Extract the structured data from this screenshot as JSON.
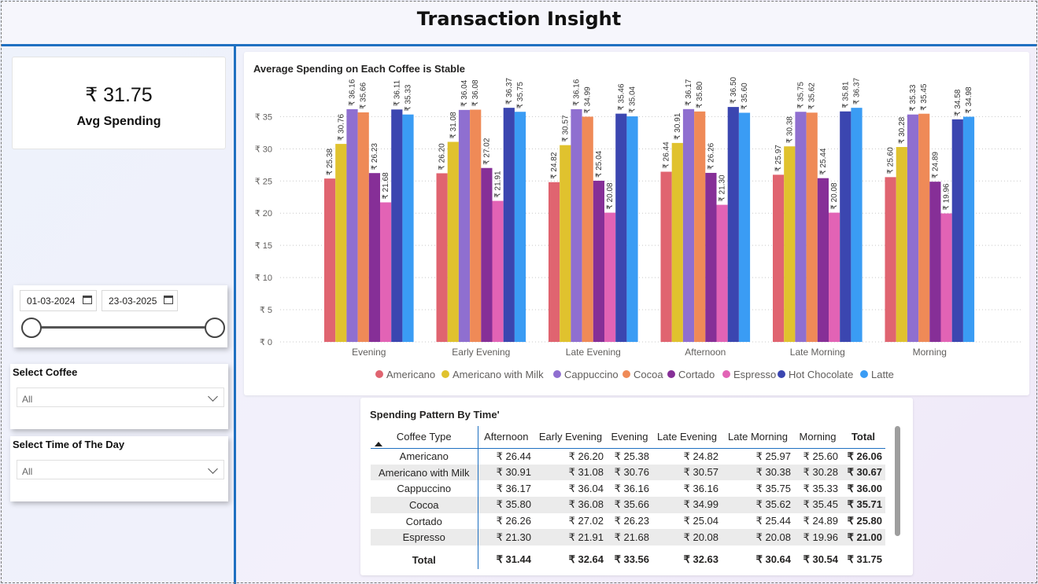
{
  "title": "Transaction Insight",
  "kpi": {
    "value": "₹ 31.75",
    "label": "Avg Spending"
  },
  "date_range": {
    "start": "01-03-2024",
    "end": "23-03-2025"
  },
  "slicers": [
    {
      "label": "Select Coffee",
      "value": "All"
    },
    {
      "label": "Select Time of The Day",
      "value": "All"
    }
  ],
  "chart_data": {
    "type": "bar",
    "title": "Average Spending on Each Coffee is Stable",
    "categories": [
      "Evening",
      "Early Evening",
      "Late Evening",
      "Afternoon",
      "Late Morning",
      "Morning"
    ],
    "series": [
      {
        "name": "Americano",
        "color": "#e06470",
        "values": [
          25.38,
          26.2,
          24.82,
          26.44,
          25.97,
          25.6
        ]
      },
      {
        "name": "Americano with Milk",
        "color": "#e0c22e",
        "values": [
          30.76,
          31.08,
          30.57,
          30.91,
          30.38,
          30.28
        ]
      },
      {
        "name": "Cappuccino",
        "color": "#8f6fd0",
        "values": [
          36.16,
          36.04,
          36.16,
          36.17,
          35.75,
          35.33
        ]
      },
      {
        "name": "Cocoa",
        "color": "#ef8a57",
        "values": [
          35.66,
          36.08,
          34.99,
          35.8,
          35.62,
          35.45
        ]
      },
      {
        "name": "Cortado",
        "color": "#862f97",
        "values": [
          26.23,
          27.02,
          25.04,
          26.26,
          25.44,
          24.89
        ]
      },
      {
        "name": "Espresso",
        "color": "#e263b5",
        "values": [
          21.68,
          21.91,
          20.08,
          21.3,
          20.08,
          19.96
        ]
      },
      {
        "name": "Hot Chocolate",
        "color": "#3b46b0",
        "values": [
          36.11,
          36.37,
          35.46,
          36.5,
          35.81,
          34.58
        ]
      },
      {
        "name": "Latte",
        "color": "#3a9cf4",
        "values": [
          35.33,
          35.75,
          35.04,
          35.6,
          36.37,
          34.98
        ]
      }
    ],
    "data_labels": [
      [
        "₹ 25.38",
        "₹ 30.76",
        "₹ 36.16",
        "₹ 35.66",
        "₹ 26.23",
        "₹ 21.68",
        "₹ 36.11",
        "₹ 35.33"
      ],
      [
        "₹ 26.20",
        "₹ 31.08",
        "₹ 36.04",
        "₹ 36.08",
        "₹ 27.02",
        "₹ 21.91",
        "₹ 36.37",
        "₹ 35.75"
      ],
      [
        "₹ 24.82",
        "₹ 30.57",
        "₹ 36.16",
        "₹ 34.99",
        "₹ 25.04",
        "₹ 20.08",
        "₹ 35.46",
        "₹ 35.04"
      ],
      [
        "₹ 26.44",
        "₹ 30.91",
        "₹ 36.17",
        "₹ 35.80",
        "₹ 26.26",
        "₹ 21.30",
        "₹ 36.50",
        "₹ 35.60"
      ],
      [
        "₹ 25.97",
        "₹ 30.38",
        "₹ 35.75",
        "₹ 35.62",
        "₹ 25.44",
        "₹ 20.08",
        "₹ 35.81",
        "₹ 36.37"
      ],
      [
        "₹ 25.60",
        "₹ 30.28",
        "₹ 35.33",
        "₹ 35.45",
        "₹ 24.89",
        "₹ 19.96",
        "₹ 34.58",
        "₹ 34.98"
      ]
    ],
    "y_ticks": [
      0,
      5,
      10,
      15,
      20,
      25,
      30,
      35
    ],
    "y_tick_labels": [
      "₹ 0",
      "₹ 5",
      "₹ 10",
      "₹ 15",
      "₹ 20",
      "₹ 25",
      "₹ 30",
      "₹ 35"
    ],
    "ylim": [
      0,
      37
    ],
    "grid": true,
    "legend_position": "bottom"
  },
  "table": {
    "title": "Spending Pattern By Time'",
    "columns": [
      "Coffee Type",
      "Afternoon",
      "Early Evening",
      "Evening",
      "Late Evening",
      "Late Morning",
      "Morning",
      "Total"
    ],
    "rows": [
      [
        "Americano",
        "₹ 26.44",
        "₹ 26.20",
        "₹ 25.38",
        "₹ 24.82",
        "₹ 25.97",
        "₹ 25.60",
        "₹ 26.06"
      ],
      [
        "Americano with Milk",
        "₹ 30.91",
        "₹ 31.08",
        "₹ 30.76",
        "₹ 30.57",
        "₹ 30.38",
        "₹ 30.28",
        "₹ 30.67"
      ],
      [
        "Cappuccino",
        "₹ 36.17",
        "₹ 36.04",
        "₹ 36.16",
        "₹ 36.16",
        "₹ 35.75",
        "₹ 35.33",
        "₹ 36.00"
      ],
      [
        "Cocoa",
        "₹ 35.80",
        "₹ 36.08",
        "₹ 35.66",
        "₹ 34.99",
        "₹ 35.62",
        "₹ 35.45",
        "₹ 35.71"
      ],
      [
        "Cortado",
        "₹ 26.26",
        "₹ 27.02",
        "₹ 26.23",
        "₹ 25.04",
        "₹ 25.44",
        "₹ 24.89",
        "₹ 25.80"
      ],
      [
        "Espresso",
        "₹ 21.30",
        "₹ 21.91",
        "₹ 21.68",
        "₹ 20.08",
        "₹ 20.08",
        "₹ 19.96",
        "₹ 21.00"
      ]
    ],
    "total_row": [
      "Total",
      "₹ 31.44",
      "₹ 32.64",
      "₹ 33.56",
      "₹ 32.63",
      "₹ 30.64",
      "₹ 30.54",
      "₹ 31.75"
    ],
    "sort_icon": "sort-up-icon"
  },
  "icons": {
    "calendar": "calendar-icon",
    "chevron": "chevron-down-icon"
  }
}
